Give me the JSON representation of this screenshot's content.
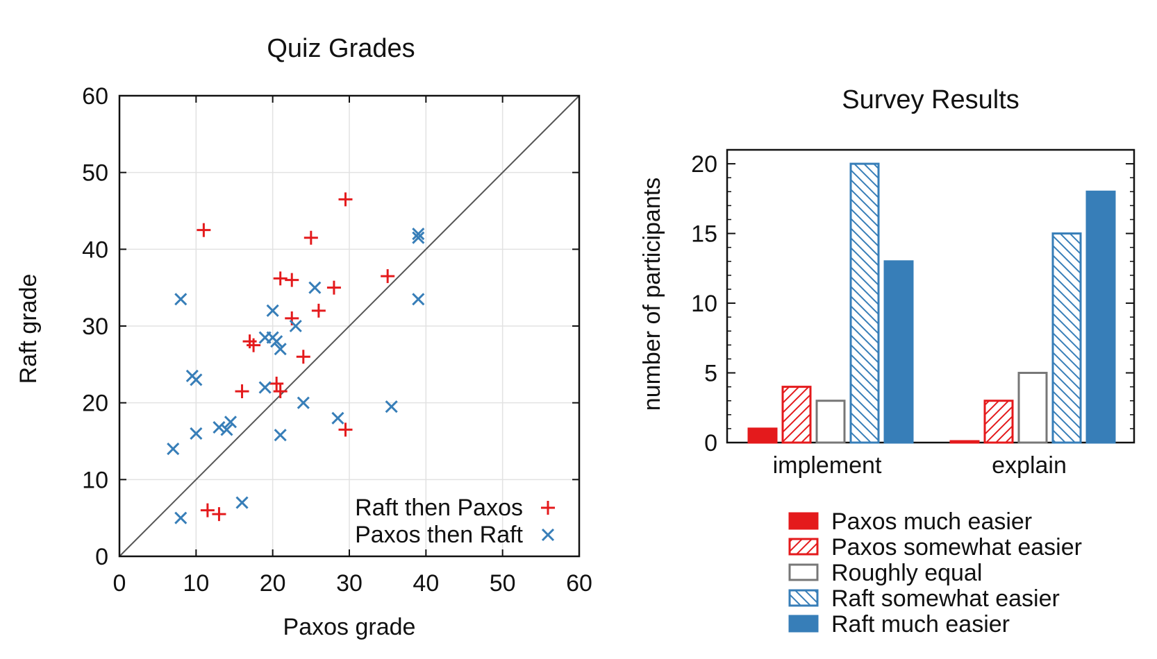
{
  "colors": {
    "red": "#e41a1c",
    "blue": "#377eb8",
    "gray": "#777777"
  },
  "chart_data": [
    {
      "type": "scatter",
      "title": "Quiz Grades",
      "xlabel": "Paxos grade",
      "ylabel": "Raft grade",
      "xlim": [
        0,
        60
      ],
      "ylim": [
        0,
        60
      ],
      "xticks": [
        "0",
        "10",
        "20",
        "30",
        "40",
        "50",
        "60"
      ],
      "yticks": [
        "0",
        "10",
        "20",
        "30",
        "40",
        "50",
        "60"
      ],
      "grid": true,
      "diagonal": true,
      "legend_position": "bottom-right",
      "series": [
        {
          "name": "Raft then Paxos",
          "marker": "plus",
          "color": "#e41a1c",
          "points": [
            [
              11,
              42.5
            ],
            [
              29.5,
              46.5
            ],
            [
              25,
              41.5
            ],
            [
              21,
              36.2
            ],
            [
              22.5,
              36
            ],
            [
              28,
              35
            ],
            [
              35,
              36.5
            ],
            [
              26,
              32
            ],
            [
              22.5,
              31
            ],
            [
              17,
              28
            ],
            [
              17.5,
              27.5
            ],
            [
              24,
              26
            ],
            [
              16,
              21.5
            ],
            [
              20.5,
              22.5
            ],
            [
              21,
              21.5
            ],
            [
              29.5,
              16.5
            ],
            [
              11.5,
              6
            ],
            [
              13,
              5.5
            ]
          ]
        },
        {
          "name": "Paxos then Raft",
          "marker": "x",
          "color": "#377eb8",
          "points": [
            [
              39,
              42
            ],
            [
              39,
              41.5
            ],
            [
              8,
              33.5
            ],
            [
              39,
              33.5
            ],
            [
              25.5,
              35
            ],
            [
              20,
              32
            ],
            [
              23,
              30
            ],
            [
              19,
              28.5
            ],
            [
              20,
              28.5
            ],
            [
              20.5,
              28
            ],
            [
              21,
              27
            ],
            [
              9.5,
              23.5
            ],
            [
              10,
              23
            ],
            [
              19,
              22
            ],
            [
              24,
              20
            ],
            [
              35.5,
              19.5
            ],
            [
              28.5,
              18
            ],
            [
              14.5,
              17.5
            ],
            [
              13,
              16.8
            ],
            [
              14,
              16.5
            ],
            [
              10,
              16
            ],
            [
              21,
              15.8
            ],
            [
              7,
              14
            ],
            [
              16,
              7
            ],
            [
              8,
              5
            ]
          ]
        }
      ]
    },
    {
      "type": "bar",
      "title": "Survey Results",
      "ylabel": "number of participants",
      "categories": [
        "implement",
        "explain"
      ],
      "ylim": [
        0,
        21
      ],
      "yticks": [
        "0",
        "5",
        "10",
        "15",
        "20"
      ],
      "legend_position": "below",
      "series": [
        {
          "name": "Paxos much easier",
          "values": [
            1,
            0.1
          ],
          "color": "#e41a1c",
          "fill": "solid"
        },
        {
          "name": "Paxos somewhat easier",
          "values": [
            4,
            3
          ],
          "color": "#e41a1c",
          "fill": "hatch"
        },
        {
          "name": "Roughly equal",
          "values": [
            3,
            5
          ],
          "color": "#777777",
          "fill": "empty"
        },
        {
          "name": "Raft somewhat easier",
          "values": [
            20,
            15
          ],
          "color": "#377eb8",
          "fill": "hatch"
        },
        {
          "name": "Raft much easier",
          "values": [
            13,
            18
          ],
          "color": "#377eb8",
          "fill": "solid"
        }
      ]
    }
  ]
}
